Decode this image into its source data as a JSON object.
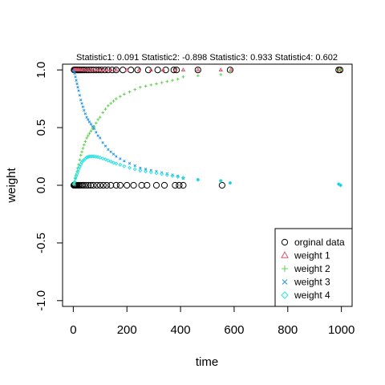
{
  "chart_data": {
    "type": "scatter",
    "title": "Statistic1: 0.091  Statistic2: -0.898  Statistic3: 0.933  Statistic4: 0.602",
    "xlabel": "time",
    "ylabel": "weight",
    "xlim": [
      -40,
      1040
    ],
    "ylim": [
      -1.05,
      1.05
    ],
    "xticks": [
      0,
      200,
      400,
      600,
      800,
      1000
    ],
    "yticks": [
      -1.0,
      -0.5,
      0.0,
      0.5,
      1.0
    ],
    "grid": false,
    "legend_position": "bottom-right",
    "series": [
      {
        "name": "orginal data",
        "marker": "circle",
        "color": "#000000",
        "points": [
          [
            3,
            1
          ],
          [
            6,
            1
          ],
          [
            9,
            1
          ],
          [
            12,
            1
          ],
          [
            16,
            1
          ],
          [
            20,
            1
          ],
          [
            25,
            1
          ],
          [
            30,
            1
          ],
          [
            36,
            1
          ],
          [
            42,
            1
          ],
          [
            50,
            1
          ],
          [
            58,
            1
          ],
          [
            66,
            1
          ],
          [
            75,
            1
          ],
          [
            85,
            1
          ],
          [
            95,
            1
          ],
          [
            105,
            1
          ],
          [
            118,
            1
          ],
          [
            130,
            1
          ],
          [
            145,
            1
          ],
          [
            160,
            1
          ],
          [
            185,
            1
          ],
          [
            215,
            1
          ],
          [
            240,
            1
          ],
          [
            280,
            1
          ],
          [
            315,
            1
          ],
          [
            345,
            1
          ],
          [
            375,
            1
          ],
          [
            385,
            1
          ],
          [
            465,
            1
          ],
          [
            585,
            1
          ],
          [
            990,
            1
          ],
          [
            995,
            1
          ],
          [
            2,
            0
          ],
          [
            5,
            0
          ],
          [
            8,
            0
          ],
          [
            11,
            0
          ],
          [
            14,
            0
          ],
          [
            18,
            0
          ],
          [
            22,
            0
          ],
          [
            27,
            0
          ],
          [
            33,
            0
          ],
          [
            40,
            0
          ],
          [
            48,
            0
          ],
          [
            56,
            0
          ],
          [
            65,
            0
          ],
          [
            75,
            0
          ],
          [
            88,
            0
          ],
          [
            100,
            0
          ],
          [
            112,
            0
          ],
          [
            125,
            0
          ],
          [
            140,
            0
          ],
          [
            160,
            0
          ],
          [
            175,
            0
          ],
          [
            200,
            0
          ],
          [
            225,
            0
          ],
          [
            255,
            0
          ],
          [
            275,
            0
          ],
          [
            310,
            0
          ],
          [
            340,
            0
          ],
          [
            380,
            0
          ],
          [
            395,
            0
          ],
          [
            410,
            0
          ],
          [
            555,
            0
          ]
        ]
      },
      {
        "name": "weight 1",
        "marker": "triangle",
        "color": "#df536b",
        "points": [
          [
            2,
            1
          ],
          [
            5,
            1
          ],
          [
            8,
            1
          ],
          [
            11,
            1
          ],
          [
            14,
            1
          ],
          [
            18,
            1
          ],
          [
            22,
            1
          ],
          [
            27,
            1
          ],
          [
            33,
            1
          ],
          [
            40,
            1
          ],
          [
            48,
            1
          ],
          [
            56,
            1
          ],
          [
            65,
            1
          ],
          [
            75,
            1
          ],
          [
            88,
            1
          ],
          [
            100,
            1
          ],
          [
            112,
            1
          ],
          [
            125,
            1
          ],
          [
            140,
            1
          ],
          [
            160,
            1
          ],
          [
            200,
            1
          ],
          [
            245,
            1
          ],
          [
            290,
            1
          ],
          [
            335,
            1
          ],
          [
            380,
            1
          ],
          [
            410,
            1
          ],
          [
            465,
            1
          ],
          [
            550,
            1
          ],
          [
            588,
            1
          ],
          [
            990,
            1
          ],
          [
            997,
            1
          ]
        ]
      },
      {
        "name": "weight 2",
        "marker": "plus",
        "color": "#61d04f",
        "points": [
          [
            2,
            0.01
          ],
          [
            5,
            0.03
          ],
          [
            8,
            0.06
          ],
          [
            11,
            0.09
          ],
          [
            14,
            0.12
          ],
          [
            17,
            0.15
          ],
          [
            20,
            0.18
          ],
          [
            24,
            0.22
          ],
          [
            28,
            0.26
          ],
          [
            32,
            0.29
          ],
          [
            36,
            0.32
          ],
          [
            40,
            0.35
          ],
          [
            45,
            0.38
          ],
          [
            50,
            0.41
          ],
          [
            55,
            0.43
          ],
          [
            60,
            0.45
          ],
          [
            66,
            0.47
          ],
          [
            72,
            0.49
          ],
          [
            78,
            0.51
          ],
          [
            85,
            0.54
          ],
          [
            92,
            0.57
          ],
          [
            100,
            0.59
          ],
          [
            110,
            0.63
          ],
          [
            120,
            0.66
          ],
          [
            130,
            0.69
          ],
          [
            140,
            0.71
          ],
          [
            150,
            0.73
          ],
          [
            160,
            0.75
          ],
          [
            175,
            0.77
          ],
          [
            190,
            0.79
          ],
          [
            210,
            0.81
          ],
          [
            230,
            0.83
          ],
          [
            250,
            0.85
          ],
          [
            270,
            0.86
          ],
          [
            290,
            0.87
          ],
          [
            310,
            0.88
          ],
          [
            330,
            0.89
          ],
          [
            350,
            0.9
          ],
          [
            370,
            0.91
          ],
          [
            390,
            0.92
          ],
          [
            410,
            0.94
          ],
          [
            465,
            0.95
          ],
          [
            550,
            0.96
          ],
          [
            585,
            0.98
          ],
          [
            990,
            1.0
          ],
          [
            997,
            1.0
          ]
        ]
      },
      {
        "name": "weight 3",
        "marker": "cross",
        "color": "#2297e6",
        "points": [
          [
            2,
            0.99
          ],
          [
            5,
            0.97
          ],
          [
            8,
            0.94
          ],
          [
            11,
            0.91
          ],
          [
            14,
            0.88
          ],
          [
            17,
            0.85
          ],
          [
            20,
            0.82
          ],
          [
            24,
            0.78
          ],
          [
            28,
            0.74
          ],
          [
            32,
            0.71
          ],
          [
            36,
            0.68
          ],
          [
            40,
            0.65
          ],
          [
            45,
            0.62
          ],
          [
            50,
            0.59
          ],
          [
            55,
            0.57
          ],
          [
            60,
            0.55
          ],
          [
            66,
            0.53
          ],
          [
            72,
            0.51
          ],
          [
            78,
            0.49
          ],
          [
            85,
            0.46
          ],
          [
            92,
            0.43
          ],
          [
            100,
            0.41
          ],
          [
            110,
            0.37
          ],
          [
            120,
            0.34
          ],
          [
            130,
            0.31
          ],
          [
            140,
            0.29
          ],
          [
            150,
            0.27
          ],
          [
            160,
            0.25
          ],
          [
            175,
            0.23
          ],
          [
            190,
            0.21
          ],
          [
            210,
            0.19
          ],
          [
            230,
            0.17
          ],
          [
            250,
            0.15
          ],
          [
            270,
            0.14
          ],
          [
            290,
            0.13
          ],
          [
            310,
            0.12
          ],
          [
            330,
            0.11
          ],
          [
            350,
            0.1
          ],
          [
            370,
            0.09
          ],
          [
            390,
            0.08
          ],
          [
            410,
            0.06
          ],
          [
            465,
            0.05
          ],
          [
            550,
            0.04
          ],
          [
            585,
            0.02
          ],
          [
            990,
            0.01
          ],
          [
            997,
            0.0
          ]
        ]
      },
      {
        "name": "weight 4",
        "marker": "diamond",
        "color": "#28e2e5",
        "points": [
          [
            2,
            0.01
          ],
          [
            5,
            0.03
          ],
          [
            8,
            0.06
          ],
          [
            11,
            0.08
          ],
          [
            14,
            0.1
          ],
          [
            17,
            0.12
          ],
          [
            20,
            0.14
          ],
          [
            24,
            0.16
          ],
          [
            28,
            0.18
          ],
          [
            32,
            0.2
          ],
          [
            36,
            0.21
          ],
          [
            40,
            0.22
          ],
          [
            45,
            0.23
          ],
          [
            50,
            0.24
          ],
          [
            55,
            0.245
          ],
          [
            60,
            0.25
          ],
          [
            66,
            0.25
          ],
          [
            72,
            0.25
          ],
          [
            78,
            0.25
          ],
          [
            85,
            0.248
          ],
          [
            92,
            0.245
          ],
          [
            100,
            0.24
          ],
          [
            110,
            0.232
          ],
          [
            120,
            0.225
          ],
          [
            130,
            0.215
          ],
          [
            140,
            0.205
          ],
          [
            150,
            0.195
          ],
          [
            160,
            0.188
          ],
          [
            175,
            0.178
          ],
          [
            190,
            0.165
          ],
          [
            210,
            0.152
          ],
          [
            230,
            0.14
          ],
          [
            250,
            0.128
          ],
          [
            270,
            0.12
          ],
          [
            290,
            0.113
          ],
          [
            310,
            0.105
          ],
          [
            330,
            0.098
          ],
          [
            350,
            0.09
          ],
          [
            370,
            0.082
          ],
          [
            390,
            0.074
          ],
          [
            410,
            0.065
          ],
          [
            465,
            0.047
          ],
          [
            550,
            0.038
          ],
          [
            585,
            0.02
          ],
          [
            990,
            0.01
          ],
          [
            997,
            0.0
          ]
        ]
      }
    ]
  }
}
